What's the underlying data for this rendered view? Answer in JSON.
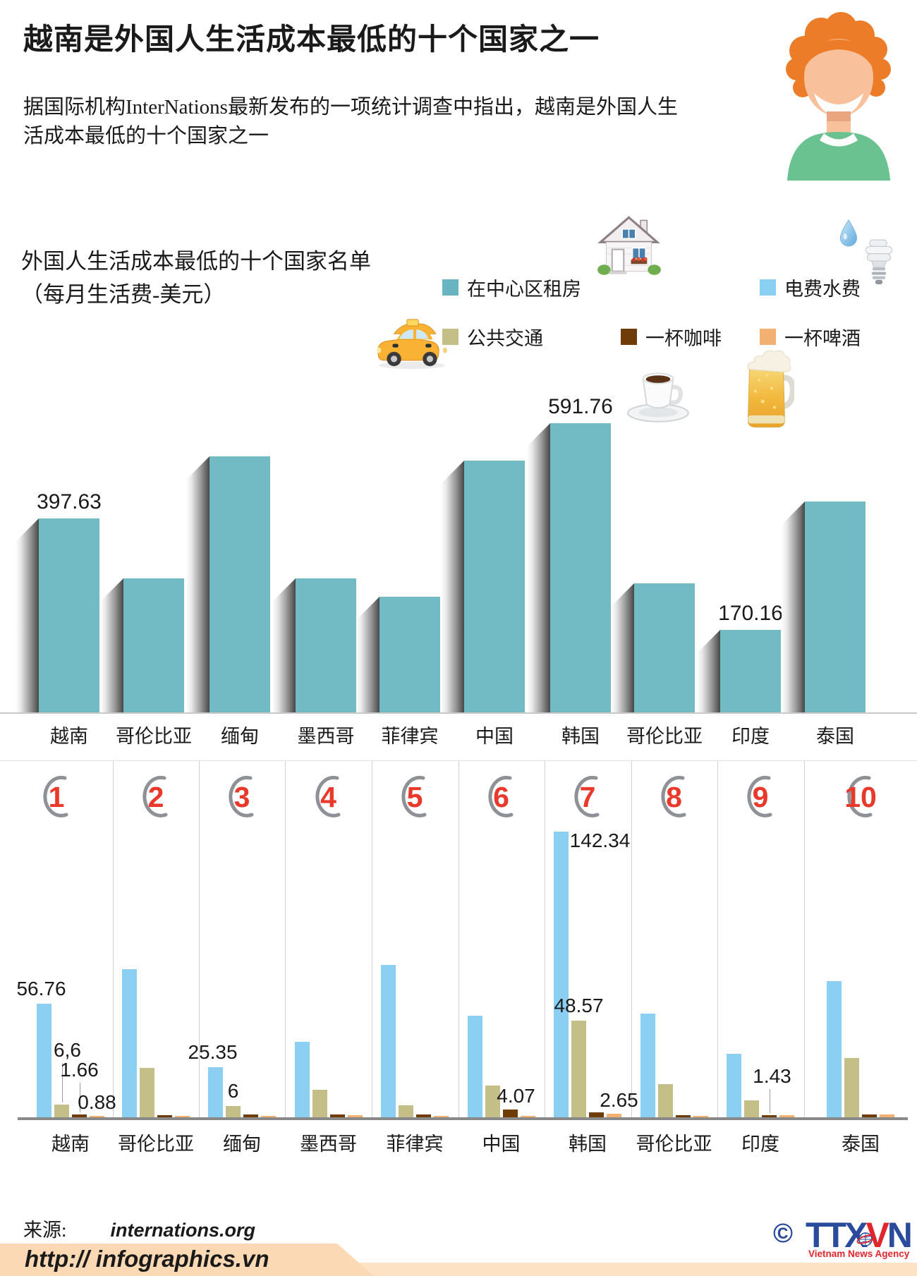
{
  "header": {
    "title": "越南是外国人生活成本最低的十个国家之一",
    "subtitle": "据国际机构InterNations最新发布的一项统计调查中指出，越南是外国人生活成本最低的十个国家之一"
  },
  "section": {
    "label": "外国人生活成本最低的十个国家名单（每月生活费-美元）"
  },
  "legend": {
    "items": [
      {
        "id": "rent",
        "label": "在中心区租房",
        "color": "#68b4c1",
        "icon": "house-icon"
      },
      {
        "id": "utilities",
        "label": "电费水费",
        "color": "#8bd0f3",
        "icon": "water-drop-and-bulb-icon"
      },
      {
        "id": "transport",
        "label": "公共交通",
        "color": "#c4bf86",
        "icon": "taxi-icon"
      },
      {
        "id": "coffee",
        "label": "一杯咖啡",
        "color": "#6f3c08",
        "icon": "coffee-cup-icon"
      },
      {
        "id": "beer",
        "label": "一杯啤酒",
        "color": "#f2b071",
        "icon": "beer-mug-icon"
      }
    ]
  },
  "ranking": {
    "numbers": [
      "1",
      "2",
      "3",
      "4",
      "5",
      "6",
      "7",
      "8",
      "9",
      "10"
    ],
    "number_color": "#e8392b",
    "arc_color": "#8e9297"
  },
  "chart_data": [
    {
      "type": "bar",
      "name": "在中心区租房",
      "unit": "每月生活费-美元",
      "categories": [
        "越南",
        "哥伦比亚",
        "缅甸",
        "墨西哥",
        "菲律宾",
        "中国",
        "韩国",
        "哥伦比亚",
        "印度",
        "泰国"
      ],
      "values": [
        397.63,
        275,
        524,
        275,
        238,
        515,
        591.76,
        265,
        170.16,
        431
      ],
      "value_labels": [
        "397.63",
        "",
        "",
        "",
        "",
        "",
        "591.76",
        "",
        "170.16",
        ""
      ],
      "bar_color": "#72bac4",
      "ylim": [
        0,
        640
      ],
      "grid": false,
      "legend_position": "top"
    },
    {
      "type": "bar",
      "name": "其他每月生活费分项",
      "unit": "美元",
      "categories": [
        "越南",
        "哥伦比亚",
        "缅甸",
        "墨西哥",
        "菲律宾",
        "中国",
        "韩国",
        "哥伦比亚",
        "印度",
        "泰国"
      ],
      "series": [
        {
          "name": "电费水费",
          "color": "#8bd0f3",
          "values": [
            56.76,
            74,
            25.35,
            38,
            76,
            51,
            142.34,
            52,
            32,
            68
          ]
        },
        {
          "name": "公共交通",
          "color": "#c4bf86",
          "values": [
            6.6,
            25,
            6,
            14,
            6.5,
            16,
            48.57,
            17,
            8.8,
            30
          ]
        },
        {
          "name": "一杯咖啡",
          "color": "#6f3c08",
          "values": [
            1.66,
            1.5,
            1.8,
            1.9,
            1.9,
            4.07,
            2.65,
            1.4,
            1.43,
            1.6
          ]
        },
        {
          "name": "一杯啤酒",
          "color": "#f2b071",
          "values": [
            0.88,
            1,
            1,
            1.4,
            1.1,
            1.2,
            2,
            1,
            1.5,
            1.9
          ]
        }
      ],
      "value_labels": [
        {
          "col": 0,
          "series": 0,
          "text": "56.76",
          "dx": -4,
          "lift": 6,
          "leader": false
        },
        {
          "col": 0,
          "series": 1,
          "text": "6,6",
          "dx": 8,
          "lift": 62,
          "leader": true
        },
        {
          "col": 0,
          "series": 2,
          "text": "1.66",
          "dx": 0,
          "lift": 48,
          "leader": true
        },
        {
          "col": 0,
          "series": 3,
          "text": "0.88",
          "dx": 0,
          "lift": 4,
          "leader": false
        },
        {
          "col": 2,
          "series": 0,
          "text": "25.35",
          "dx": -4,
          "lift": 6,
          "leader": false
        },
        {
          "col": 2,
          "series": 1,
          "text": "6",
          "dx": 0,
          "lift": 6,
          "leader": false
        },
        {
          "col": 5,
          "series": 2,
          "text": "4.07",
          "dx": 8,
          "lift": 4,
          "leader": false
        },
        {
          "col": 6,
          "series": 0,
          "text": "142.34",
          "dx": 55,
          "lift": -28,
          "leader": false
        },
        {
          "col": 6,
          "series": 1,
          "text": "48.57",
          "dx": 0,
          "lift": 6,
          "leader": false
        },
        {
          "col": 6,
          "series": 2,
          "text": "2.65",
          "dx": 32,
          "lift": 2,
          "leader": false
        },
        {
          "col": 8,
          "series": 2,
          "text": "1.43",
          "dx": 4,
          "lift": 40,
          "leader": true
        }
      ],
      "ylim": [
        0,
        155
      ],
      "grid": false
    }
  ],
  "source": {
    "label": "来源:",
    "value": "internations.org"
  },
  "footer": {
    "url": "http:// infographics.vn",
    "copyright": "©",
    "logo_text_1": "TTX",
    "logo_text_2": "V",
    "logo_text_3": "N",
    "logo_sub": "Vietnam News Agency",
    "strip_color": "#fbd9b4"
  }
}
